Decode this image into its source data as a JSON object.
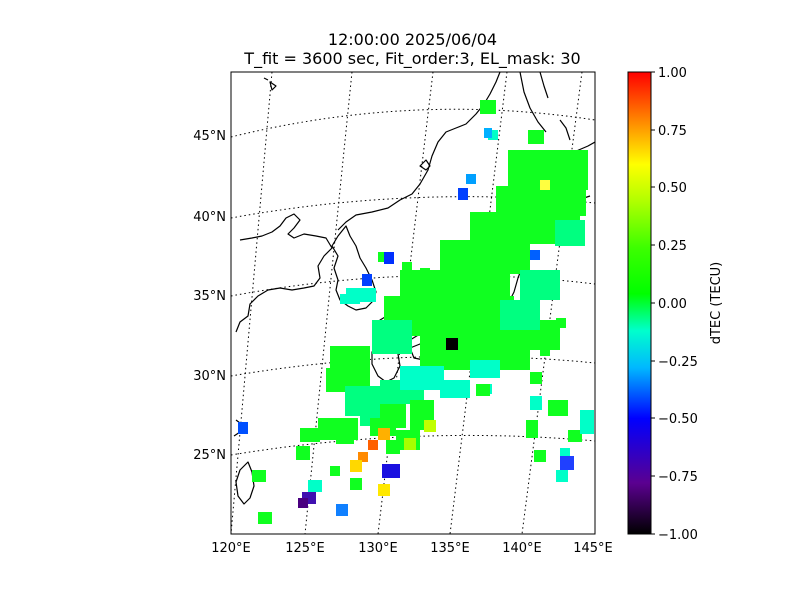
{
  "title": {
    "line1": "12:00:00 2025/06/04",
    "line2": "T_fit = 3600 sec, Fit_order:3, EL_mask: 30"
  },
  "map": {
    "lon_labels": [
      "120°E",
      "125°E",
      "130°E",
      "135°E",
      "140°E",
      "145°E"
    ],
    "lat_labels": [
      "45°N",
      "40°N",
      "35°N",
      "30°N",
      "25°N"
    ]
  },
  "colorbar": {
    "label": "dTEC (TECU)",
    "ticks": [
      "1.00",
      "0.75",
      "0.50",
      "0.25",
      "0.00",
      "−0.25",
      "−0.50",
      "−0.75",
      "−1.00"
    ],
    "min": -1.0,
    "max": 1.0,
    "colormap": [
      "#000000",
      "#5b0090",
      "#0000ff",
      "#00b8ff",
      "#00ffcc",
      "#00ff00",
      "#7fff00",
      "#ffff00",
      "#ff8000",
      "#ff0000"
    ]
  }
}
